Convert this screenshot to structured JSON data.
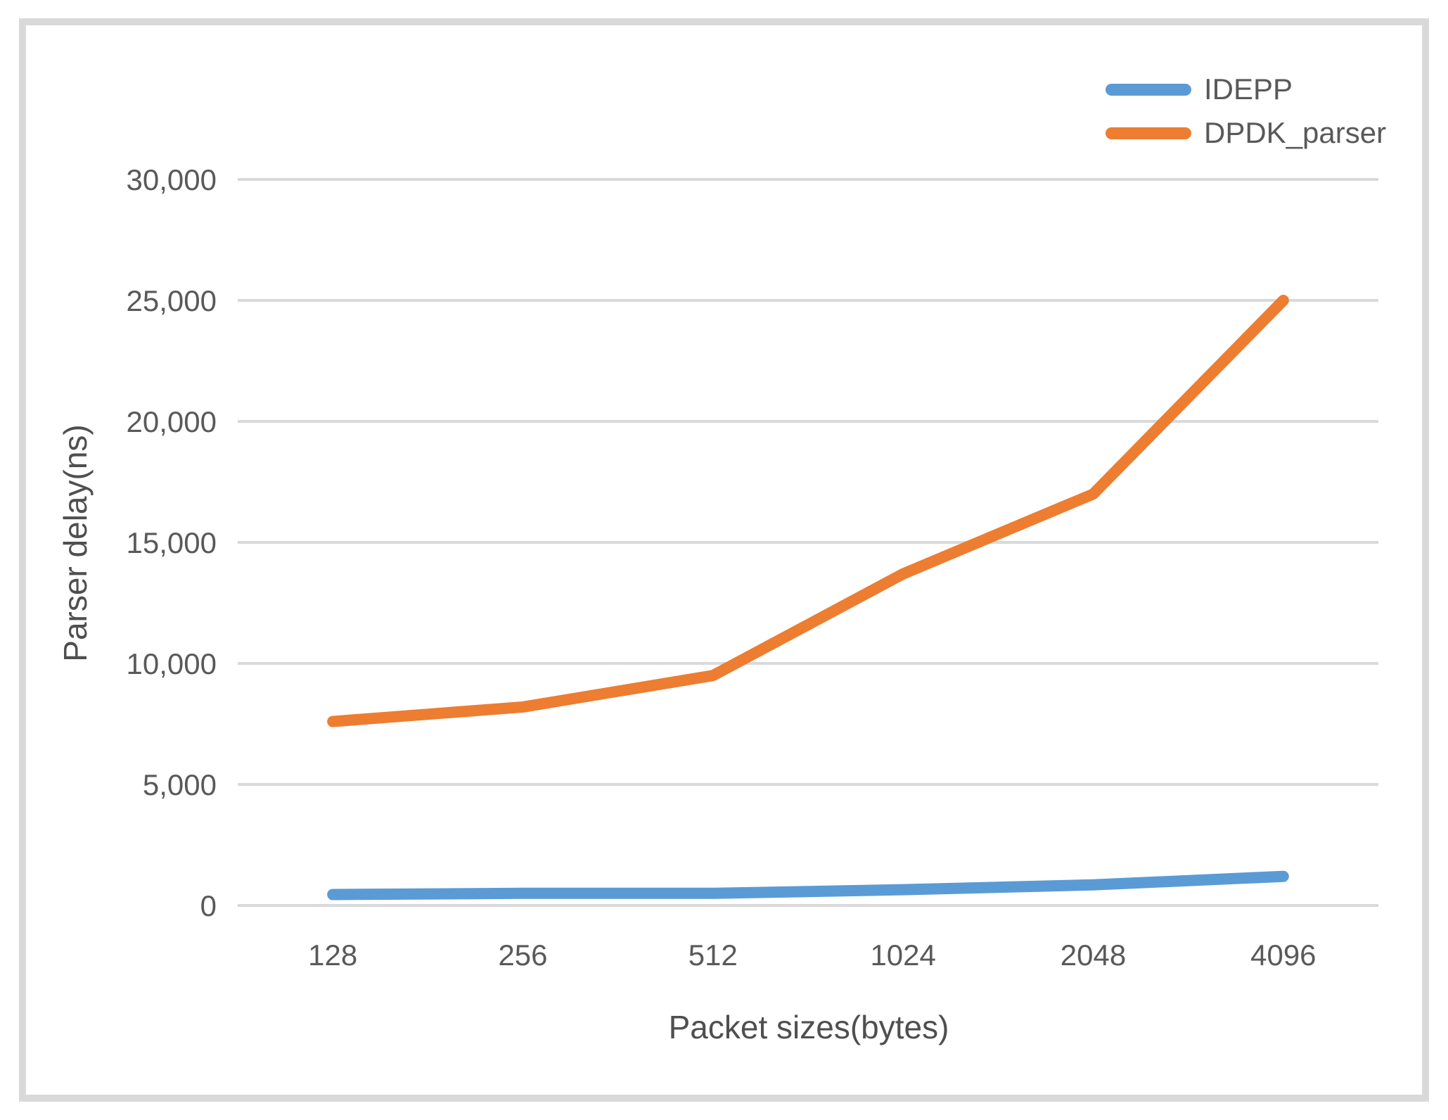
{
  "chart_data": {
    "type": "line",
    "xlabel": "Packet sizes(bytes)",
    "ylabel": "Parser delay(ns)",
    "categories": [
      "128",
      "256",
      "512",
      "1024",
      "2048",
      "4096"
    ],
    "series": [
      {
        "name": "IDEPP",
        "color": "#5B9BD5",
        "values": [
          450,
          500,
          500,
          650,
          850,
          1200
        ]
      },
      {
        "name": "DPDK_parser",
        "color": "#ED7D31",
        "values": [
          7600,
          8200,
          9500,
          13700,
          17000,
          25000
        ]
      }
    ],
    "ylim": [
      0,
      30000
    ],
    "ytick_step": 5000,
    "ytick_labels": [
      "0",
      "5,000",
      "10,000",
      "15,000",
      "20,000",
      "25,000",
      "30,000"
    ],
    "grid": "horizontal",
    "legend_position": "top-right"
  },
  "colors": {
    "gridline": "#D9D9D9",
    "frame_border": "#D9D9D9",
    "axis_text": "#595959"
  }
}
